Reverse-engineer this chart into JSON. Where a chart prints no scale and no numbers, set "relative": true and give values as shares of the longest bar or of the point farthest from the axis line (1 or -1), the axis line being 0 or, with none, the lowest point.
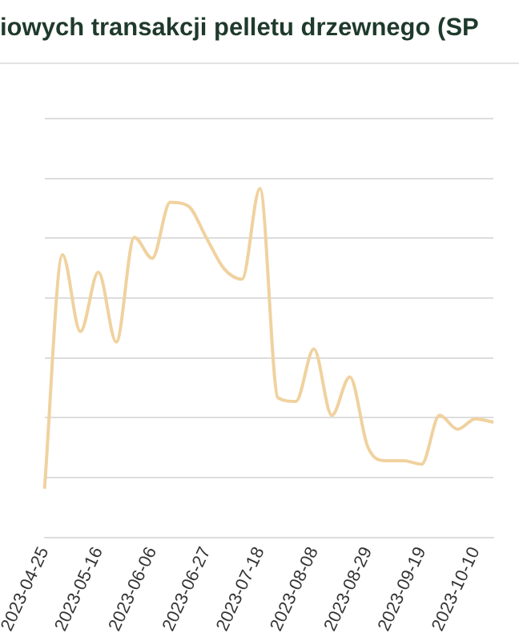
{
  "chart_data": {
    "type": "line",
    "title": "iowych transakcji pelletu drzewnego (SP",
    "categories": [
      "2023-04-25",
      null,
      null,
      "2023-05-16",
      null,
      null,
      "2023-06-06",
      null,
      null,
      "2023-06-27",
      null,
      null,
      "2023-07-18",
      null,
      null,
      "2023-08-08",
      null,
      null,
      "2023-08-29",
      null,
      null,
      "2023-09-19",
      null,
      null,
      "2023-10-10",
      null
    ],
    "values": [
      0.14,
      0.81,
      0.59,
      0.76,
      0.56,
      0.86,
      0.8,
      0.96,
      0.95,
      0.86,
      0.77,
      0.74,
      1,
      0.4,
      0.39,
      0.54,
      0.35,
      0.46,
      0.26,
      0.22,
      0.22,
      0.21,
      0.35,
      0.31,
      0.34,
      0.33
    ],
    "color": "#f0d29f",
    "relative": true,
    "grid": "y"
  }
}
